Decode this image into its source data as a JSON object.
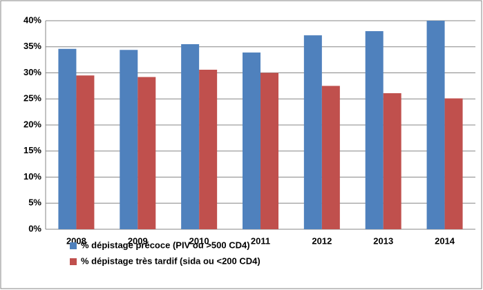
{
  "chart_data": {
    "type": "bar",
    "categories": [
      "2008",
      "2009",
      "2010",
      "2011",
      "2012",
      "2013",
      "2014"
    ],
    "series": [
      {
        "name": "% dépistage précoce (PIV ou >500 CD4)",
        "color": "#4f81bd",
        "values": [
          34.6,
          34.4,
          35.5,
          33.9,
          37.2,
          38.0,
          40.0
        ]
      },
      {
        "name": "% dépistage très tardif (sida ou <200 CD4)",
        "color": "#c0504d",
        "values": [
          29.5,
          29.2,
          30.6,
          30.0,
          27.5,
          26.1,
          25.1
        ]
      }
    ],
    "ylim": [
      0,
      40
    ],
    "yticks": [
      {
        "value": 0,
        "label": "0%"
      },
      {
        "value": 5,
        "label": "5%"
      },
      {
        "value": 10,
        "label": "10%"
      },
      {
        "value": 15,
        "label": "15%"
      },
      {
        "value": 20,
        "label": "20%"
      },
      {
        "value": 25,
        "label": "25%"
      },
      {
        "value": 30,
        "label": "30%"
      },
      {
        "value": 35,
        "label": "35%"
      },
      {
        "value": 40,
        "label": "40%"
      }
    ],
    "grid": true
  }
}
